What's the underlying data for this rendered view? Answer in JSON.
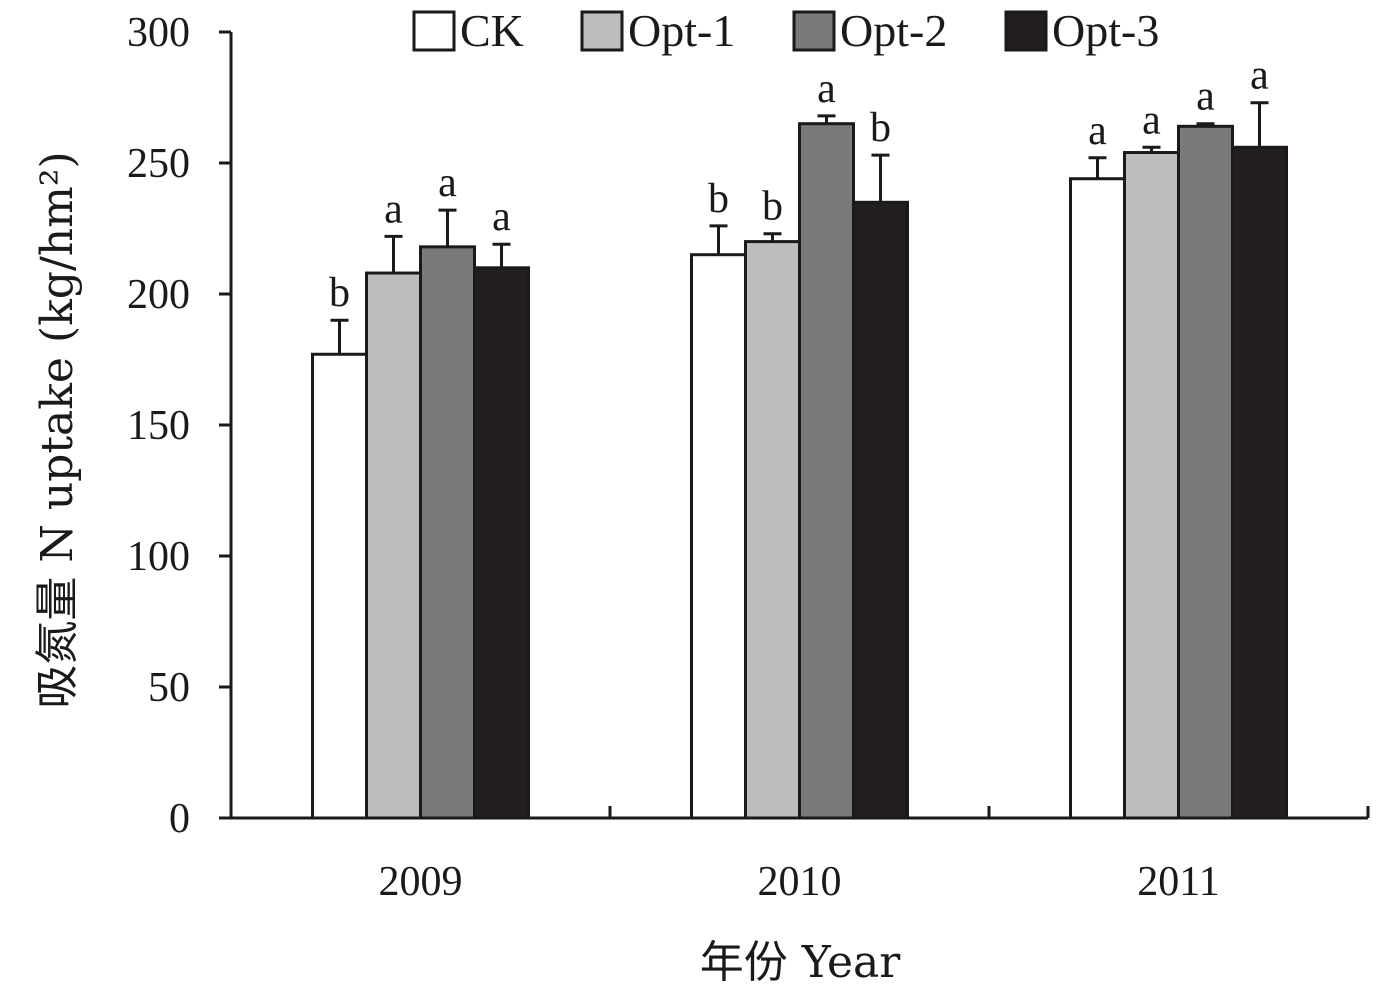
{
  "chart_data": {
    "type": "bar",
    "title": "",
    "xlabel": "年份 Year",
    "ylabel": "吸氮量 N uptake (kg/hm²)",
    "ylim": [
      0,
      300
    ],
    "yticks": [
      0,
      50,
      100,
      150,
      200,
      250,
      300
    ],
    "categories": [
      "2009",
      "2010",
      "2011"
    ],
    "legend_position": "top",
    "series": [
      {
        "name": "CK",
        "color": "#ffffff",
        "values": [
          177,
          215,
          244
        ],
        "errors": [
          13,
          11,
          8
        ],
        "labels": [
          "b",
          "b",
          "a"
        ]
      },
      {
        "name": "Opt-1",
        "color": "#bdbdbd",
        "values": [
          208,
          220,
          254
        ],
        "errors": [
          14,
          3,
          2
        ],
        "labels": [
          "a",
          "b",
          "a"
        ]
      },
      {
        "name": "Opt-2",
        "color": "#7b7979",
        "values": [
          218,
          265,
          264
        ],
        "errors": [
          14,
          3,
          1
        ],
        "labels": [
          "a",
          "a",
          "a"
        ]
      },
      {
        "name": "Opt-3",
        "color": "#231f20",
        "values": [
          210,
          235,
          256
        ],
        "errors": [
          9,
          18,
          17
        ],
        "labels": [
          "a",
          "b",
          "a"
        ]
      }
    ]
  }
}
